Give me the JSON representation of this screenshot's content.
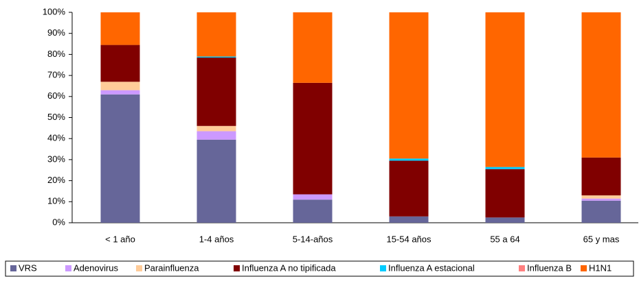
{
  "chart_data": {
    "type": "stacked_bar",
    "categories": [
      "< 1 año",
      "1-4 años",
      "5-14-años",
      "15-54 años",
      "55 a 64",
      "65 y mas"
    ],
    "series": [
      {
        "name": "VRS",
        "color": "#666699",
        "values": [
          61,
          39.5,
          11,
          3,
          2.5,
          10.5
        ]
      },
      {
        "name": "Adenovirus",
        "color": "#cc99ff",
        "values": [
          2,
          4,
          2.5,
          0,
          0,
          1
        ]
      },
      {
        "name": "Parainfluenza",
        "color": "#ffcc99",
        "values": [
          4,
          2.5,
          0,
          0,
          0,
          1.5
        ]
      },
      {
        "name": "Influenza A no tipificada",
        "color": "#800000",
        "values": [
          17.5,
          32.5,
          53,
          26.5,
          23,
          18
        ]
      },
      {
        "name": "Influenza A estacional",
        "color": "#00ccff",
        "values": [
          0,
          0.5,
          0,
          1,
          1,
          0
        ]
      },
      {
        "name": "Influenza B",
        "color": "#ff8080",
        "values": [
          0,
          0,
          0,
          0,
          0,
          0
        ]
      },
      {
        "name": "H1N1",
        "color": "#ff6600",
        "values": [
          15.5,
          21,
          33.5,
          69.5,
          73.5,
          69
        ]
      }
    ],
    "ylim": [
      0,
      100
    ],
    "yticks": [
      {
        "value": 0,
        "label": "0%"
      },
      {
        "value": 10,
        "label": "10%"
      },
      {
        "value": 20,
        "label": "20%"
      },
      {
        "value": 30,
        "label": "30%"
      },
      {
        "value": 40,
        "label": "40%"
      },
      {
        "value": 50,
        "label": "50%"
      },
      {
        "value": 60,
        "label": "60%"
      },
      {
        "value": 70,
        "label": "70%"
      },
      {
        "value": 80,
        "label": "80%"
      },
      {
        "value": 90,
        "label": "90%"
      },
      {
        "value": 100,
        "label": "100%"
      }
    ],
    "legend": "bottom"
  }
}
